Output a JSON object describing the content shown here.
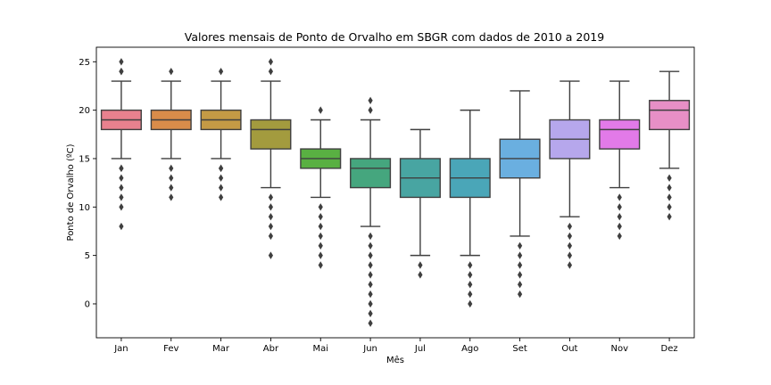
{
  "chart_data": {
    "type": "box",
    "title": "Valores mensais de Ponto de Orvalho em SBGR com dados de 2010 a 2019",
    "xlabel": "Mês",
    "ylabel": "Ponto de Orvalho (ºC)",
    "ylim": [
      -3.5,
      26.5
    ],
    "yticks": [
      0,
      5,
      10,
      15,
      20,
      25
    ],
    "grid": false,
    "categories": [
      "Jan",
      "Fev",
      "Mar",
      "Abr",
      "Mai",
      "Jun",
      "Jul",
      "Ago",
      "Set",
      "Out",
      "Nov",
      "Dez"
    ],
    "series": [
      {
        "category": "Jan",
        "color": "#e8818e",
        "whisker_low": 15,
        "q1": 18,
        "median": 19,
        "q3": 20,
        "whisker_high": 23,
        "outliers": [
          8,
          10,
          11,
          12,
          13,
          14,
          14,
          24,
          24,
          25
        ]
      },
      {
        "category": "Fev",
        "color": "#d98c4a",
        "whisker_low": 15,
        "q1": 18,
        "median": 19,
        "q3": 20,
        "whisker_high": 23,
        "outliers": [
          11,
          12,
          13,
          14,
          24
        ]
      },
      {
        "category": "Mar",
        "color": "#c49a45",
        "whisker_low": 15,
        "q1": 18,
        "median": 19,
        "q3": 20,
        "whisker_high": 23,
        "outliers": [
          11,
          12,
          13,
          14,
          14,
          24
        ]
      },
      {
        "category": "Abr",
        "color": "#a39b3e",
        "whisker_low": 12,
        "q1": 16,
        "median": 18,
        "q3": 19,
        "whisker_high": 23,
        "outliers": [
          5,
          7,
          8,
          9,
          10,
          11,
          24,
          25
        ]
      },
      {
        "category": "Mai",
        "color": "#59b042",
        "whisker_low": 11,
        "q1": 14,
        "median": 15,
        "q3": 16,
        "whisker_high": 19,
        "outliers": [
          4,
          5,
          6,
          7,
          8,
          9,
          10,
          20
        ]
      },
      {
        "category": "Jun",
        "color": "#45a67e",
        "whisker_low": 8,
        "q1": 12,
        "median": 14,
        "q3": 15,
        "whisker_high": 19,
        "outliers": [
          -2,
          -1,
          0,
          1,
          2,
          3,
          4,
          5,
          6,
          7,
          20,
          21
        ]
      },
      {
        "category": "Jul",
        "color": "#48a5a2",
        "whisker_low": 5,
        "q1": 11,
        "median": 13,
        "q3": 15,
        "whisker_high": 18,
        "outliers": [
          3,
          4
        ]
      },
      {
        "category": "Ago",
        "color": "#4aa6b8",
        "whisker_low": 5,
        "q1": 11,
        "median": 13,
        "q3": 15,
        "whisker_high": 20,
        "outliers": [
          0,
          1,
          2,
          3,
          4
        ]
      },
      {
        "category": "Set",
        "color": "#6aafe0",
        "whisker_low": 7,
        "q1": 13,
        "median": 15,
        "q3": 17,
        "whisker_high": 22,
        "outliers": [
          1,
          2,
          3,
          4,
          5,
          6
        ]
      },
      {
        "category": "Out",
        "color": "#b6a7ec",
        "whisker_low": 9,
        "q1": 15,
        "median": 17,
        "q3": 19,
        "whisker_high": 23,
        "outliers": [
          4,
          5,
          6,
          7,
          8
        ]
      },
      {
        "category": "Nov",
        "color": "#e27ae8",
        "whisker_low": 12,
        "q1": 16,
        "median": 18,
        "q3": 19,
        "whisker_high": 23,
        "outliers": [
          7,
          8,
          9,
          10,
          11
        ]
      },
      {
        "category": "Dez",
        "color": "#e78fc6",
        "whisker_low": 14,
        "q1": 18,
        "median": 20,
        "q3": 21,
        "whisker_high": 24,
        "outliers": [
          9,
          10,
          11,
          12,
          13
        ]
      }
    ]
  }
}
